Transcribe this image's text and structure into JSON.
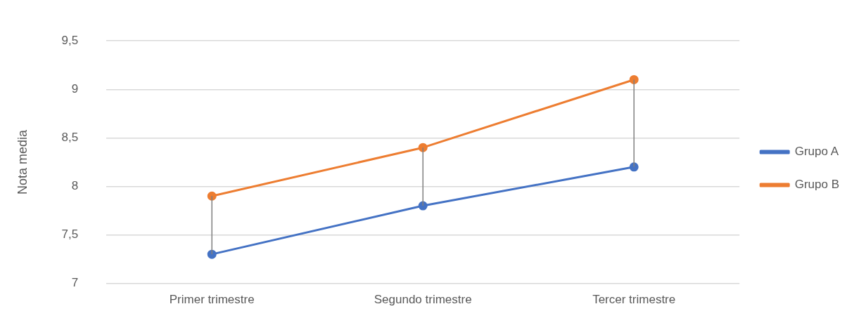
{
  "chart_data": {
    "type": "line",
    "ylabel": "Nota media",
    "categories": [
      "Primer trimestre",
      "Segundo trimestre",
      "Tercer trimestre"
    ],
    "series": [
      {
        "name": "Grupo A",
        "color": "#4472c4",
        "values": [
          7.3,
          7.8,
          8.2
        ],
        "errors": [
          [
            7.3,
            7.9
          ],
          [
            7.8,
            8.4
          ],
          [
            8.2,
            9.1
          ]
        ]
      },
      {
        "name": "Grupo B",
        "color": "#ed7d31",
        "values": [
          7.9,
          8.4,
          9.1
        ]
      }
    ],
    "ylim": [
      7,
      9.5
    ],
    "yticks": [
      7,
      {
        "value": 7.5,
        "label": "7,5"
      },
      8,
      {
        "value": 8.5,
        "label": "8,5"
      },
      9,
      {
        "value": 9.5,
        "label": "9,5"
      }
    ],
    "grid": "y",
    "legend": "right",
    "marker": "circle"
  }
}
